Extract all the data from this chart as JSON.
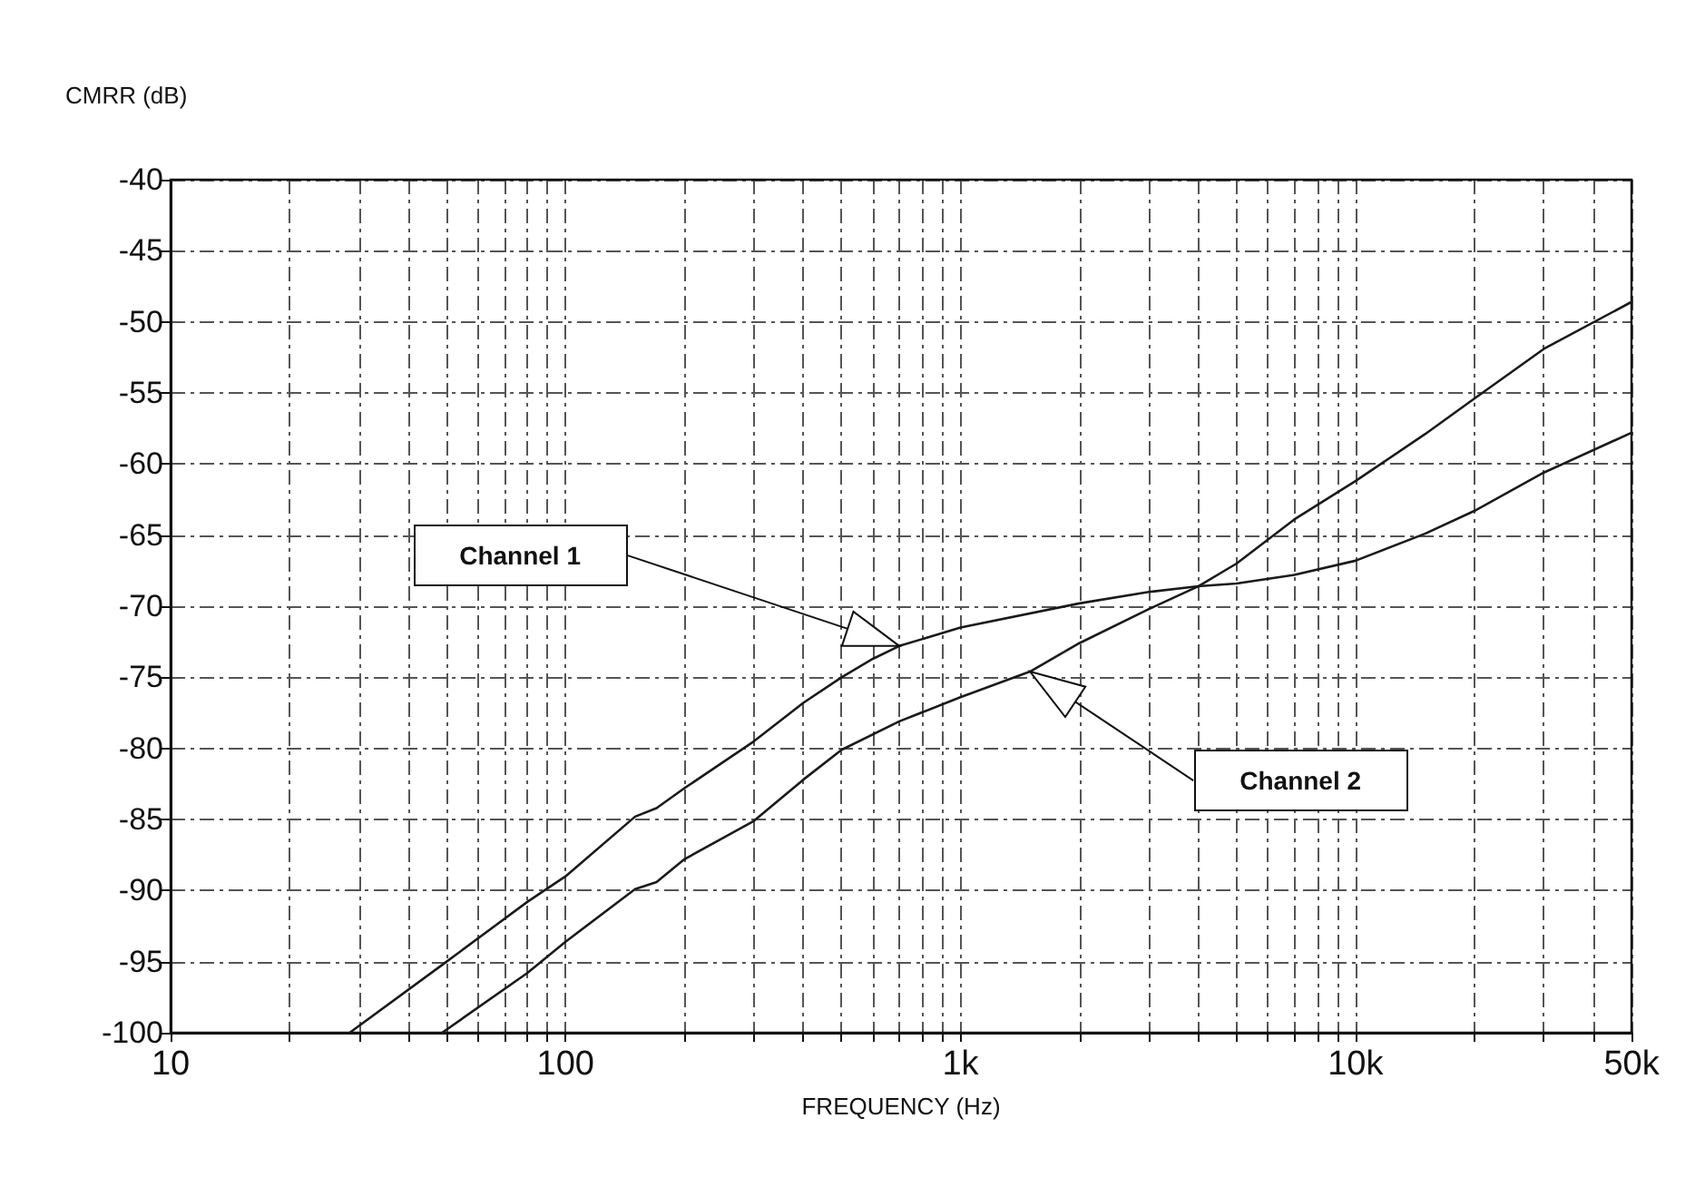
{
  "chart_data": {
    "type": "line",
    "ylabel": "CMRR (dB)",
    "xlabel": "FREQUENCY (Hz)",
    "log": "x",
    "xlim": [
      10,
      50000
    ],
    "xticks": [
      10,
      {
        "value": 20,
        "label": null
      },
      {
        "value": 30,
        "label": null
      },
      {
        "value": 40,
        "label": null
      },
      {
        "value": 50,
        "label": null
      },
      {
        "value": 60,
        "label": null
      },
      {
        "value": 70,
        "label": null
      },
      {
        "value": 80,
        "label": null
      },
      {
        "value": 90,
        "label": null
      },
      100,
      {
        "value": 200,
        "label": null
      },
      {
        "value": 300,
        "label": null
      },
      {
        "value": 400,
        "label": null
      },
      {
        "value": 500,
        "label": null
      },
      {
        "value": 600,
        "label": null
      },
      {
        "value": 700,
        "label": null
      },
      {
        "value": 800,
        "label": null
      },
      {
        "value": 900,
        "label": null
      },
      {
        "value": 1000,
        "label": "1k"
      },
      {
        "value": 2000,
        "label": null
      },
      {
        "value": 3000,
        "label": null
      },
      {
        "value": 4000,
        "label": null
      },
      {
        "value": 5000,
        "label": null
      },
      {
        "value": 6000,
        "label": null
      },
      {
        "value": 7000,
        "label": null
      },
      {
        "value": 8000,
        "label": null
      },
      {
        "value": 9000,
        "label": null
      },
      {
        "value": 10000,
        "label": "10k"
      },
      {
        "value": 20000,
        "label": null
      },
      {
        "value": 30000,
        "label": null
      },
      {
        "value": 40000,
        "label": null
      },
      {
        "value": 50000,
        "label": "50k"
      }
    ],
    "ylim": [
      -100,
      -40
    ],
    "yticks": [
      -100,
      -95,
      -90,
      -85,
      -80,
      -75,
      -70,
      -65,
      -60,
      -55,
      -50,
      -45,
      -40
    ],
    "grid": true,
    "legend": false,
    "marker": "none",
    "line_style": "solid",
    "series": [
      {
        "name": "Channel 1",
        "color": "#1a1a1a",
        "x": [
          28.4,
          50,
          80,
          100,
          150,
          170,
          200,
          300,
          400,
          500,
          600,
          700,
          1000,
          2000,
          3000,
          4000,
          5000,
          7000,
          10000,
          15000,
          20000,
          30000,
          50000
        ],
        "values": [
          -100,
          -95,
          -90.8,
          -89,
          -84.8,
          -84.2,
          -82.8,
          -79.5,
          -76.8,
          -75,
          -73.7,
          -72.8,
          -71.5,
          -69.8,
          -69,
          -68.6,
          -68.4,
          -67.8,
          -66.8,
          -64.9,
          -63.3,
          -60.6,
          -57.8
        ]
      },
      {
        "name": "Channel 2",
        "color": "#1a1a1a",
        "x": [
          48.7,
          80,
          100,
          150,
          170,
          200,
          300,
          400,
          500,
          700,
          1000,
          1500,
          2000,
          3000,
          4000,
          5000,
          7000,
          10000,
          15000,
          20000,
          30000,
          50000
        ],
        "values": [
          -100,
          -95.8,
          -93.6,
          -89.9,
          -89.4,
          -87.8,
          -85.1,
          -82.2,
          -80.1,
          -78.1,
          -76.4,
          -74.6,
          -72.6,
          -70.2,
          -68.6,
          -67,
          -63.9,
          -61.2,
          -57.9,
          -55.4,
          -51.9,
          -48.6
        ]
      }
    ]
  }
}
